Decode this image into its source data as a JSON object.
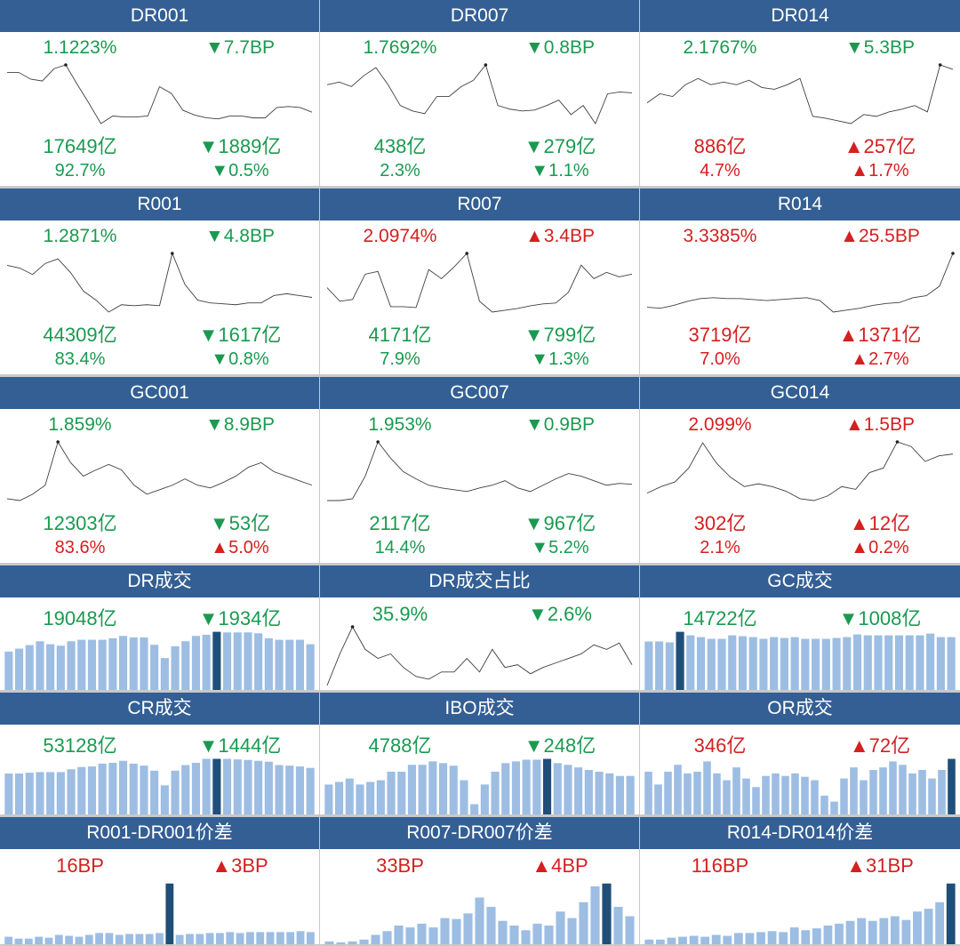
{
  "colors": {
    "header": "#335f94",
    "down": "#1a9a50",
    "up": "#d42020",
    "bar": "#9dbde3",
    "bar_highlight": "#1f4e79",
    "line": "#404040"
  },
  "arrows": {
    "down": "▼",
    "up": "▲"
  },
  "panels": [
    {
      "title": "DR001",
      "type": "rate",
      "rows": [
        {
          "left": "1.1223%",
          "right": "7.7BP",
          "dir": "down"
        },
        {
          "left": "17649亿",
          "right": "1889亿",
          "dir": "down"
        },
        {
          "left": "92.7%",
          "right": "0.5%",
          "dir": "down"
        }
      ],
      "series": [
        58,
        58,
        51,
        49,
        62,
        66,
        45,
        25,
        4,
        12,
        11,
        11,
        12,
        43,
        36,
        18,
        13,
        10,
        9,
        12,
        12,
        10,
        10,
        21,
        22,
        21,
        16
      ],
      "highlight": 5
    },
    {
      "title": "DR007",
      "type": "rate",
      "rows": [
        {
          "left": "1.7692%",
          "right": "0.8BP",
          "dir": "down"
        },
        {
          "left": "438亿",
          "right": "279亿",
          "dir": "down"
        },
        {
          "left": "2.3%",
          "right": "1.1%",
          "dir": "down"
        }
      ],
      "series": [
        45,
        48,
        43,
        55,
        64,
        45,
        22,
        16,
        13,
        32,
        32,
        43,
        50,
        67,
        22,
        18,
        16,
        17,
        22,
        28,
        12,
        22,
        2,
        35,
        37,
        36
      ],
      "highlight": 13
    },
    {
      "title": "DR014",
      "type": "rate",
      "rows": [
        {
          "left": "2.1767%",
          "right": "5.3BP",
          "dir": "down"
        },
        {
          "left": "886亿",
          "right": "257亿",
          "dir": "up"
        },
        {
          "left": "4.7%",
          "right": "1.7%",
          "dir": "up"
        }
      ],
      "series": [
        25,
        35,
        32,
        45,
        52,
        45,
        48,
        45,
        50,
        42,
        40,
        45,
        52,
        10,
        8,
        5,
        2,
        12,
        10,
        15,
        18,
        22,
        15,
        67,
        62
      ],
      "highlight": 23
    },
    {
      "title": "R001",
      "type": "rate",
      "rows": [
        {
          "left": "1.2871%",
          "right": "4.8BP",
          "dir": "down"
        },
        {
          "left": "44309亿",
          "right": "1617亿",
          "dir": "down"
        },
        {
          "left": "83.4%",
          "right": "0.8%",
          "dir": "down"
        }
      ],
      "series": [
        53,
        50,
        43,
        55,
        60,
        45,
        25,
        15,
        2,
        10,
        9,
        10,
        9,
        66,
        32,
        15,
        12,
        11,
        10,
        12,
        12,
        20,
        22,
        20,
        18
      ],
      "highlight": 13
    },
    {
      "title": "R007",
      "type": "rate",
      "rows": [
        {
          "left": "2.0974%",
          "right": "3.4BP",
          "dir": "up"
        },
        {
          "left": "4171亿",
          "right": "799亿",
          "dir": "down"
        },
        {
          "left": "7.9%",
          "right": "1.3%",
          "dir": "down"
        }
      ],
      "series": [
        30,
        15,
        17,
        45,
        48,
        9,
        9,
        8,
        50,
        40,
        53,
        68,
        15,
        3,
        5,
        7,
        10,
        12,
        13,
        25,
        55,
        40,
        47,
        42,
        45
      ],
      "highlight": 11
    },
    {
      "title": "R014",
      "type": "rate",
      "rows": [
        {
          "left": "3.3385%",
          "right": "25.5BP",
          "dir": "up"
        },
        {
          "left": "3719亿",
          "right": "1371亿",
          "dir": "up"
        },
        {
          "left": "7.0%",
          "right": "2.7%",
          "dir": "up"
        }
      ],
      "series": [
        8,
        7,
        10,
        14,
        17,
        18,
        17,
        17,
        16,
        15,
        16,
        17,
        18,
        15,
        3,
        5,
        7,
        10,
        12,
        13,
        18,
        20,
        30,
        64
      ],
      "highlight": 23
    },
    {
      "title": "GC001",
      "type": "rate",
      "rows": [
        {
          "left": "1.859%",
          "right": "8.9BP",
          "dir": "down"
        },
        {
          "left": "12303亿",
          "right": "53亿",
          "dir": "down"
        },
        {
          "left": "83.6%",
          "right": "5.0%",
          "dir": "up"
        }
      ],
      "series": [
        5,
        3,
        10,
        20,
        68,
        45,
        30,
        37,
        43,
        37,
        20,
        10,
        15,
        20,
        27,
        20,
        17,
        23,
        30,
        40,
        45,
        35,
        30,
        25,
        20
      ],
      "highlight": 4
    },
    {
      "title": "GC007",
      "type": "rate",
      "rows": [
        {
          "left": "1.953%",
          "right": "0.9BP",
          "dir": "down"
        },
        {
          "left": "2117亿",
          "right": "967亿",
          "dir": "down"
        },
        {
          "left": "14.4%",
          "right": "5.2%",
          "dir": "down"
        }
      ],
      "series": [
        3,
        3,
        5,
        30,
        68,
        50,
        35,
        27,
        20,
        17,
        15,
        13,
        17,
        20,
        25,
        17,
        13,
        20,
        27,
        33,
        30,
        25,
        20,
        22,
        21
      ],
      "highlight": 4
    },
    {
      "title": "GC014",
      "type": "rate",
      "rows": [
        {
          "left": "2.099%",
          "right": "1.5BP",
          "dir": "up"
        },
        {
          "left": "302亿",
          "right": "12亿",
          "dir": "up"
        },
        {
          "left": "2.1%",
          "right": "0.2%",
          "dir": "up"
        }
      ],
      "series": [
        13,
        20,
        25,
        40,
        67,
        45,
        30,
        20,
        23,
        20,
        15,
        7,
        5,
        10,
        20,
        17,
        35,
        40,
        68,
        63,
        47,
        53,
        55
      ],
      "highlight": 18
    },
    {
      "title": "DR成交",
      "type": "bar",
      "rows": [
        {
          "left": "19048亿",
          "right": "1934亿",
          "dir": "down"
        }
      ],
      "series": [
        130,
        140,
        152,
        165,
        155,
        150,
        165,
        170,
        170,
        170,
        175,
        183,
        178,
        178,
        153,
        108,
        148,
        165,
        183,
        187,
        197,
        195,
        195,
        195,
        192,
        175,
        170,
        170,
        170,
        155
      ],
      "highlight": 20
    },
    {
      "title": "DR成交占比",
      "type": "line",
      "rows": [
        {
          "left": "35.9%",
          "right": "2.6%",
          "dir": "down"
        }
      ],
      "series": [
        2,
        37,
        67,
        42,
        32,
        37,
        22,
        12,
        9,
        17,
        17,
        32,
        17,
        42,
        22,
        25,
        15,
        22,
        27,
        32,
        37,
        47,
        42,
        49,
        25
      ],
      "highlight": 2
    },
    {
      "title": "GC成交",
      "type": "bar",
      "rows": [
        {
          "left": "14722亿",
          "right": "1008亿",
          "dir": "down"
        }
      ],
      "series": [
        55,
        55,
        54,
        66,
        62,
        60,
        58,
        58,
        62,
        61,
        60,
        58,
        60,
        59,
        60,
        58,
        58,
        58,
        59,
        60,
        63,
        62,
        62,
        62,
        62,
        62,
        62,
        64,
        60,
        60
      ],
      "highlight": 3
    },
    {
      "title": "CR成交",
      "type": "bar",
      "rows": [
        {
          "left": "53128亿",
          "right": "1444亿",
          "dir": "down"
        }
      ],
      "series": [
        145,
        145,
        148,
        150,
        150,
        150,
        160,
        168,
        170,
        180,
        183,
        190,
        180,
        173,
        155,
        103,
        155,
        175,
        183,
        197,
        197,
        197,
        195,
        193,
        190,
        187,
        175,
        173,
        170,
        165
      ],
      "highlight": 20
    },
    {
      "title": "IBO成交",
      "type": "bar",
      "rows": [
        {
          "left": "4788亿",
          "right": "248亿",
          "dir": "down"
        }
      ],
      "series": [
        35,
        38,
        42,
        35,
        38,
        40,
        50,
        50,
        58,
        58,
        62,
        60,
        57,
        40,
        12,
        35,
        50,
        60,
        62,
        64,
        64,
        65,
        60,
        58,
        55,
        52,
        50,
        48,
        45,
        45
      ],
      "highlight": 21
    },
    {
      "title": "OR成交",
      "type": "bar",
      "rows": [
        {
          "left": "346亿",
          "right": "72亿",
          "dir": "up"
        }
      ],
      "series": [
        50,
        35,
        50,
        58,
        48,
        50,
        62,
        48,
        40,
        55,
        42,
        32,
        45,
        48,
        45,
        48,
        44,
        40,
        22,
        15,
        42,
        55,
        40,
        52,
        55,
        62,
        58,
        48,
        52,
        42,
        52,
        65
      ],
      "highlight": 31
    },
    {
      "title": "R001-DR001价差",
      "type": "bar",
      "rows": [
        {
          "left": "16BP",
          "right": "3BP",
          "dir": "up"
        }
      ],
      "series": [
        8,
        6,
        6,
        8,
        7,
        10,
        9,
        8,
        10,
        12,
        12,
        10,
        11,
        11,
        11,
        12,
        65,
        10,
        11,
        11,
        12,
        12,
        13,
        12,
        13,
        13,
        13,
        13,
        13,
        14,
        13
      ],
      "highlight": 16
    },
    {
      "title": "R007-DR007价差",
      "type": "bar",
      "rows": [
        {
          "left": "33BP",
          "right": "4BP",
          "dir": "up"
        }
      ],
      "series": [
        3,
        2,
        3,
        5,
        10,
        14,
        20,
        18,
        22,
        18,
        28,
        27,
        33,
        50,
        40,
        25,
        20,
        15,
        22,
        20,
        35,
        28,
        45,
        62,
        65,
        40,
        30
      ],
      "highlight": 24
    },
    {
      "title": "R014-DR014价差",
      "type": "bar",
      "rows": [
        {
          "left": "116BP",
          "right": "31BP",
          "dir": "up"
        }
      ],
      "series": [
        5,
        5,
        7,
        8,
        9,
        8,
        10,
        9,
        12,
        12,
        13,
        14,
        13,
        18,
        15,
        17,
        20,
        22,
        25,
        28,
        25,
        28,
        30,
        26,
        35,
        38,
        45,
        65
      ],
      "highlight": 27
    }
  ]
}
